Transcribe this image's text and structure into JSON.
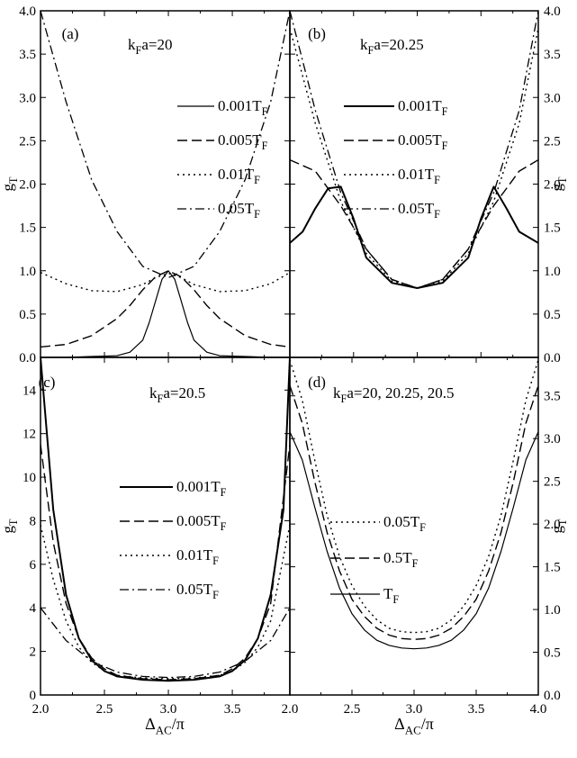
{
  "chart_data": [
    {
      "id": "a",
      "type": "line",
      "panel_label": "(a)",
      "annotation": {
        "main": "k",
        "sub": "F",
        "rest": "a=20"
      },
      "ylabel": "g",
      "ylabel_sub": "T",
      "xlim": [
        2.0,
        3.95
      ],
      "ylim": [
        0,
        4.0
      ],
      "yticks": [
        "0.0",
        "0.5",
        "1.0",
        "1.5",
        "2.0",
        "2.5",
        "3.0",
        "3.5",
        "4.0"
      ],
      "series": [
        {
          "name": "0.001T_F",
          "label_main": "0.001T",
          "label_sub": "F",
          "style": "solid-thin",
          "x": [
            2.0,
            2.2,
            2.4,
            2.6,
            2.7,
            2.8,
            2.85,
            2.9,
            2.95,
            3.0,
            3.05,
            3.1,
            3.15,
            3.2,
            3.3,
            3.4,
            3.6,
            3.8,
            3.95
          ],
          "y": [
            0.0,
            0.0,
            0.01,
            0.02,
            0.06,
            0.2,
            0.4,
            0.65,
            0.9,
            1.0,
            0.9,
            0.65,
            0.4,
            0.2,
            0.06,
            0.02,
            0.01,
            0.0,
            0.0
          ]
        },
        {
          "name": "0.005T_F",
          "label_main": "0.005T",
          "label_sub": "F",
          "style": "dash",
          "x": [
            2.0,
            2.2,
            2.4,
            2.6,
            2.7,
            2.8,
            2.9,
            3.0,
            3.1,
            3.2,
            3.3,
            3.4,
            3.6,
            3.8,
            3.95
          ],
          "y": [
            0.12,
            0.15,
            0.25,
            0.45,
            0.6,
            0.78,
            0.93,
            1.0,
            0.93,
            0.78,
            0.6,
            0.45,
            0.25,
            0.15,
            0.12
          ]
        },
        {
          "name": "0.01T_F",
          "label_main": "0.01T",
          "label_sub": "F",
          "style": "dot",
          "x": [
            2.0,
            2.2,
            2.4,
            2.6,
            2.8,
            2.9,
            3.0,
            3.1,
            3.2,
            3.4,
            3.6,
            3.8,
            3.95
          ],
          "y": [
            0.98,
            0.85,
            0.77,
            0.76,
            0.84,
            0.92,
            0.97,
            0.92,
            0.84,
            0.76,
            0.77,
            0.85,
            0.98
          ]
        },
        {
          "name": "0.05T_F",
          "label_main": "0.05T",
          "label_sub": "F",
          "style": "dashdot",
          "x": [
            2.0,
            2.2,
            2.4,
            2.6,
            2.8,
            3.0,
            3.2,
            3.4,
            3.6,
            3.8,
            3.95
          ],
          "y": [
            4.0,
            2.95,
            2.05,
            1.45,
            1.05,
            0.92,
            1.05,
            1.45,
            2.05,
            2.95,
            4.0
          ]
        }
      ]
    },
    {
      "id": "b",
      "type": "line",
      "panel_label": "(b)",
      "annotation": {
        "main": "k",
        "sub": "F",
        "rest": "a=20.25"
      },
      "ylabel": "g",
      "ylabel_sub": "T",
      "xlim": [
        2.0,
        3.95
      ],
      "ylim": [
        0,
        4.0
      ],
      "yticks": [
        "0.0",
        "0.5",
        "1.0",
        "1.5",
        "2.0",
        "2.5",
        "3.0",
        "3.5",
        "4.0"
      ],
      "series": [
        {
          "name": "0.001T_F",
          "label_main": "0.001T",
          "label_sub": "F",
          "style": "solid-thick",
          "x": [
            2.0,
            2.1,
            2.2,
            2.3,
            2.4,
            2.5,
            2.6,
            2.8,
            3.0,
            3.2,
            3.4,
            3.5,
            3.6,
            3.7,
            3.8,
            3.95
          ],
          "y": [
            1.32,
            1.45,
            1.72,
            1.95,
            1.97,
            1.6,
            1.15,
            0.86,
            0.8,
            0.86,
            1.15,
            1.6,
            1.97,
            1.72,
            1.45,
            1.32
          ]
        },
        {
          "name": "0.005T_F",
          "label_main": "0.005T",
          "label_sub": "F",
          "style": "dash",
          "x": [
            2.0,
            2.2,
            2.4,
            2.6,
            2.8,
            3.0,
            3.2,
            3.4,
            3.6,
            3.8,
            3.95
          ],
          "y": [
            2.28,
            2.15,
            1.75,
            1.25,
            0.9,
            0.8,
            0.9,
            1.25,
            1.75,
            2.15,
            2.28
          ]
        },
        {
          "name": "0.01T_F",
          "label_main": "0.01T",
          "label_sub": "F",
          "style": "dot",
          "x": [
            2.0,
            2.2,
            2.4,
            2.6,
            2.8,
            3.0,
            3.2,
            3.4,
            3.6,
            3.8,
            3.95
          ],
          "y": [
            3.8,
            2.7,
            1.8,
            1.2,
            0.88,
            0.8,
            0.88,
            1.2,
            1.8,
            2.7,
            3.8
          ]
        },
        {
          "name": "0.05T_F",
          "label_main": "0.05T",
          "label_sub": "F",
          "style": "dashdot",
          "x": [
            2.0,
            2.2,
            2.4,
            2.6,
            2.8,
            3.0,
            3.2,
            3.4,
            3.6,
            3.8,
            3.95
          ],
          "y": [
            4.0,
            2.85,
            1.9,
            1.25,
            0.9,
            0.8,
            0.9,
            1.25,
            1.9,
            2.85,
            4.0
          ]
        }
      ]
    },
    {
      "id": "c",
      "type": "line",
      "panel_label": "(c)",
      "annotation": {
        "main": "k",
        "sub": "F",
        "rest": "a=20.5"
      },
      "ylabel": "g",
      "ylabel_sub": "T",
      "xlim": [
        2.0,
        3.95
      ],
      "ylim": [
        0,
        15.5
      ],
      "yticks": [
        "0",
        "2",
        "4",
        "6",
        "8",
        "10",
        "12",
        "14"
      ],
      "xticks": [
        "2.0",
        "2.5",
        "3.0",
        "3.5"
      ],
      "series": [
        {
          "name": "0.001T_F",
          "label_main": "0.001T",
          "label_sub": "F",
          "style": "solid-thick",
          "x": [
            2.0,
            2.05,
            2.1,
            2.2,
            2.3,
            2.4,
            2.5,
            2.6,
            2.8,
            3.0,
            3.2,
            3.4,
            3.5,
            3.6,
            3.7,
            3.8,
            3.9,
            3.95
          ],
          "y": [
            15.5,
            12.0,
            8.5,
            4.6,
            2.6,
            1.6,
            1.1,
            0.85,
            0.7,
            0.65,
            0.7,
            0.85,
            1.1,
            1.6,
            2.6,
            4.6,
            8.5,
            15.5
          ]
        },
        {
          "name": "0.005T_F",
          "label_main": "0.005T",
          "label_sub": "F",
          "style": "dash",
          "x": [
            2.0,
            2.1,
            2.2,
            2.3,
            2.4,
            2.5,
            2.6,
            2.8,
            3.0,
            3.2,
            3.4,
            3.5,
            3.6,
            3.7,
            3.8,
            3.95
          ],
          "y": [
            11.5,
            7.0,
            4.2,
            2.6,
            1.7,
            1.2,
            0.9,
            0.75,
            0.7,
            0.75,
            0.9,
            1.2,
            1.7,
            2.6,
            4.2,
            11.5
          ]
        },
        {
          "name": "0.01T_F",
          "label_main": "0.01T",
          "label_sub": "F",
          "style": "dot",
          "x": [
            2.0,
            2.1,
            2.2,
            2.3,
            2.4,
            2.5,
            2.6,
            2.8,
            3.0,
            3.2,
            3.4,
            3.5,
            3.6,
            3.7,
            3.8,
            3.95
          ],
          "y": [
            7.8,
            5.3,
            3.4,
            2.2,
            1.5,
            1.1,
            0.9,
            0.78,
            0.75,
            0.78,
            0.9,
            1.1,
            1.5,
            2.2,
            3.4,
            7.8
          ]
        },
        {
          "name": "0.05T_F",
          "label_main": "0.05T",
          "label_sub": "F",
          "style": "dashdot",
          "x": [
            2.0,
            2.2,
            2.4,
            2.6,
            2.8,
            3.0,
            3.2,
            3.4,
            3.6,
            3.8,
            3.95
          ],
          "y": [
            4.0,
            2.5,
            1.55,
            1.05,
            0.85,
            0.8,
            0.85,
            1.05,
            1.55,
            2.5,
            4.0
          ]
        }
      ]
    },
    {
      "id": "d",
      "type": "line",
      "panel_label": "(d)",
      "annotation": {
        "main": "k",
        "sub": "F",
        "rest": "a=20, 20.25, 20.5"
      },
      "ylabel": "g",
      "ylabel_sub": "T",
      "xlim": [
        2.0,
        4.0
      ],
      "ylim": [
        0,
        3.95
      ],
      "yticks": [
        "0.0",
        "0.5",
        "1.0",
        "1.5",
        "2.0",
        "2.5",
        "3.0",
        "3.5"
      ],
      "xticks": [
        "2.0",
        "2.5",
        "3.0",
        "3.5",
        "4.0"
      ],
      "series": [
        {
          "name": "0.05T_F",
          "label_main": "0.05T",
          "label_sub": "F",
          "style": "dot",
          "x": [
            2.0,
            2.1,
            2.2,
            2.3,
            2.4,
            2.5,
            2.6,
            2.7,
            2.8,
            2.9,
            3.0,
            3.1,
            3.2,
            3.3,
            3.4,
            3.5,
            3.6,
            3.7,
            3.8,
            3.9,
            4.0
          ],
          "y": [
            3.92,
            3.45,
            2.75,
            2.1,
            1.62,
            1.28,
            1.04,
            0.88,
            0.78,
            0.74,
            0.73,
            0.74,
            0.78,
            0.88,
            1.04,
            1.28,
            1.62,
            2.1,
            2.75,
            3.45,
            3.92
          ]
        },
        {
          "name": "0.5T_F",
          "label_main": "0.5T",
          "label_sub": "F",
          "style": "dash",
          "x": [
            2.0,
            2.1,
            2.2,
            2.3,
            2.4,
            2.5,
            2.6,
            2.7,
            2.8,
            2.9,
            3.0,
            3.1,
            3.2,
            3.3,
            3.4,
            3.5,
            3.6,
            3.7,
            3.8,
            3.9,
            4.0
          ],
          "y": [
            3.62,
            3.18,
            2.5,
            1.9,
            1.45,
            1.12,
            0.92,
            0.78,
            0.7,
            0.66,
            0.65,
            0.66,
            0.7,
            0.78,
            0.92,
            1.12,
            1.45,
            1.9,
            2.5,
            3.18,
            3.62
          ]
        },
        {
          "name": "T_F",
          "label_main": "T",
          "label_sub": "F",
          "style": "solid-thin",
          "x": [
            2.0,
            2.1,
            2.2,
            2.3,
            2.4,
            2.5,
            2.6,
            2.7,
            2.8,
            2.9,
            3.0,
            3.1,
            3.2,
            3.3,
            3.4,
            3.5,
            3.6,
            3.7,
            3.8,
            3.9,
            4.0
          ],
          "y": [
            3.08,
            2.75,
            2.2,
            1.68,
            1.25,
            0.95,
            0.76,
            0.64,
            0.58,
            0.55,
            0.54,
            0.55,
            0.58,
            0.64,
            0.76,
            0.95,
            1.25,
            1.68,
            2.2,
            2.75,
            3.08
          ]
        }
      ]
    }
  ],
  "xlabel": {
    "main": "Δ",
    "sub": "AC",
    "rest": "/π"
  }
}
